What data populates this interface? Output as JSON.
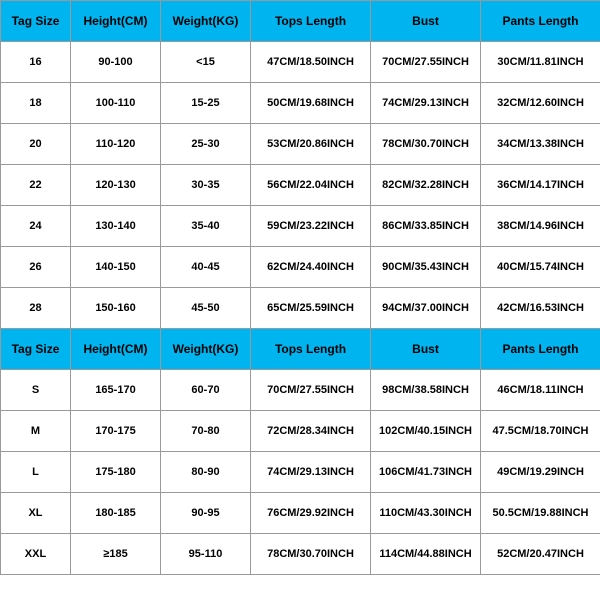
{
  "header_bg": "#00b4f0",
  "border_color": "#999999",
  "cell_bg": "#ffffff",
  "text_color": "#000000",
  "headers": {
    "tag": "Tag Size",
    "height": "Height(CM)",
    "weight": "Weight(KG)",
    "tops": "Tops Length",
    "bust": "Bust",
    "pants": "Pants Length"
  },
  "kids": [
    {
      "tag": "16",
      "height": "90-100",
      "weight": "<15",
      "tops": "47CM/18.50INCH",
      "bust": "70CM/27.55INCH",
      "pants": "30CM/11.81INCH"
    },
    {
      "tag": "18",
      "height": "100-110",
      "weight": "15-25",
      "tops": "50CM/19.68INCH",
      "bust": "74CM/29.13INCH",
      "pants": "32CM/12.60INCH"
    },
    {
      "tag": "20",
      "height": "110-120",
      "weight": "25-30",
      "tops": "53CM/20.86INCH",
      "bust": "78CM/30.70INCH",
      "pants": "34CM/13.38INCH"
    },
    {
      "tag": "22",
      "height": "120-130",
      "weight": "30-35",
      "tops": "56CM/22.04INCH",
      "bust": "82CM/32.28INCH",
      "pants": "36CM/14.17INCH"
    },
    {
      "tag": "24",
      "height": "130-140",
      "weight": "35-40",
      "tops": "59CM/23.22INCH",
      "bust": "86CM/33.85INCH",
      "pants": "38CM/14.96INCH"
    },
    {
      "tag": "26",
      "height": "140-150",
      "weight": "40-45",
      "tops": "62CM/24.40INCH",
      "bust": "90CM/35.43INCH",
      "pants": "40CM/15.74INCH"
    },
    {
      "tag": "28",
      "height": "150-160",
      "weight": "45-50",
      "tops": "65CM/25.59INCH",
      "bust": "94CM/37.00INCH",
      "pants": "42CM/16.53INCH"
    }
  ],
  "adults": [
    {
      "tag": "S",
      "height": "165-170",
      "weight": "60-70",
      "tops": "70CM/27.55INCH",
      "bust": "98CM/38.58INCH",
      "pants": "46CM/18.11INCH"
    },
    {
      "tag": "M",
      "height": "170-175",
      "weight": "70-80",
      "tops": "72CM/28.34INCH",
      "bust": "102CM/40.15INCH",
      "pants": "47.5CM/18.70INCH"
    },
    {
      "tag": "L",
      "height": "175-180",
      "weight": "80-90",
      "tops": "74CM/29.13INCH",
      "bust": "106CM/41.73INCH",
      "pants": "49CM/19.29INCH"
    },
    {
      "tag": "XL",
      "height": "180-185",
      "weight": "90-95",
      "tops": "76CM/29.92INCH",
      "bust": "110CM/43.30INCH",
      "pants": "50.5CM/19.88INCH"
    },
    {
      "tag": "XXL",
      "height": "≥185",
      "weight": "95-110",
      "tops": "78CM/30.70INCH",
      "bust": "114CM/44.88INCH",
      "pants": "52CM/20.47INCH"
    }
  ]
}
